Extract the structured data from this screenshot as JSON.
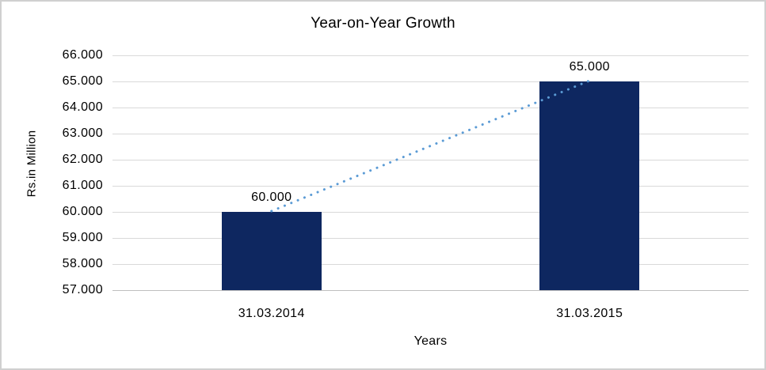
{
  "chart_data": {
    "type": "bar",
    "title": "Year-on-Year Growth",
    "xlabel": "Years",
    "ylabel": "Rs.in Million",
    "categories": [
      "31.03.2014",
      "31.03.2015"
    ],
    "series": [
      {
        "name": "Growth",
        "values": [
          60000,
          65000
        ],
        "data_labels": [
          "60.000",
          "65.000"
        ]
      }
    ],
    "ylim": [
      57000,
      66000
    ],
    "yticks": [
      {
        "value": 57000,
        "label": "57.000"
      },
      {
        "value": 58000,
        "label": "58.000"
      },
      {
        "value": 59000,
        "label": "59.000"
      },
      {
        "value": 60000,
        "label": "60.000"
      },
      {
        "value": 61000,
        "label": "61.000"
      },
      {
        "value": 62000,
        "label": "62.000"
      },
      {
        "value": 63000,
        "label": "63.000"
      },
      {
        "value": 64000,
        "label": "64.000"
      },
      {
        "value": 65000,
        "label": "65.000"
      },
      {
        "value": 66000,
        "label": "66.000"
      }
    ],
    "grid": true,
    "legend": "none",
    "trendline": {
      "type": "linear",
      "style": "dotted",
      "color": "#5B9BD5"
    },
    "colors": {
      "bar": "#0E2760",
      "gridline": "#D9D9D9",
      "axis_line": "#BFBFBF",
      "text": "#000000",
      "border": "#D0D0D0",
      "background": "#FFFFFF"
    }
  }
}
